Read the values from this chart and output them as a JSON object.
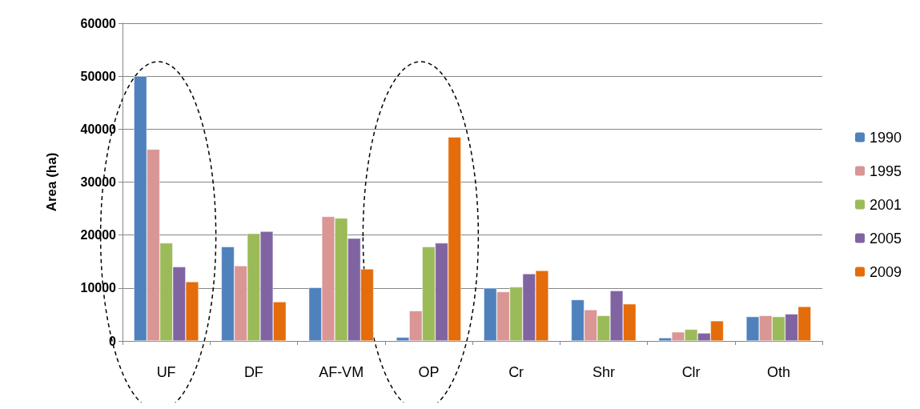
{
  "chart_data": {
    "type": "bar",
    "ylabel": "Area (ha)",
    "categories": [
      "UF",
      "DF",
      "AF-VM",
      "OP",
      "Cr",
      "Shr",
      "Clr",
      "Oth"
    ],
    "series": [
      {
        "name": "1990",
        "color": "#4f81bd",
        "values": [
          50000,
          17800,
          10100,
          700,
          10000,
          7800,
          600,
          4600
        ]
      },
      {
        "name": "1995",
        "color": "#d99694",
        "values": [
          36200,
          14200,
          23500,
          5700,
          9300,
          5900,
          1700,
          4800
        ]
      },
      {
        "name": "2001",
        "color": "#9bbb59",
        "values": [
          18500,
          20300,
          23200,
          17800,
          10200,
          4800,
          2200,
          4600
        ]
      },
      {
        "name": "2005",
        "color": "#8064a2",
        "values": [
          14000,
          20700,
          19400,
          18500,
          12700,
          9500,
          1500,
          5100
        ]
      },
      {
        "name": "2009",
        "color": "#e46c0a",
        "values": [
          11200,
          7400,
          13600,
          38500,
          13300,
          7000,
          3800,
          6500
        ]
      }
    ],
    "ylim": [
      0,
      60000
    ],
    "yticks": [
      0,
      10000,
      20000,
      30000,
      40000,
      50000,
      60000
    ],
    "grid": "y",
    "legend": "right"
  }
}
